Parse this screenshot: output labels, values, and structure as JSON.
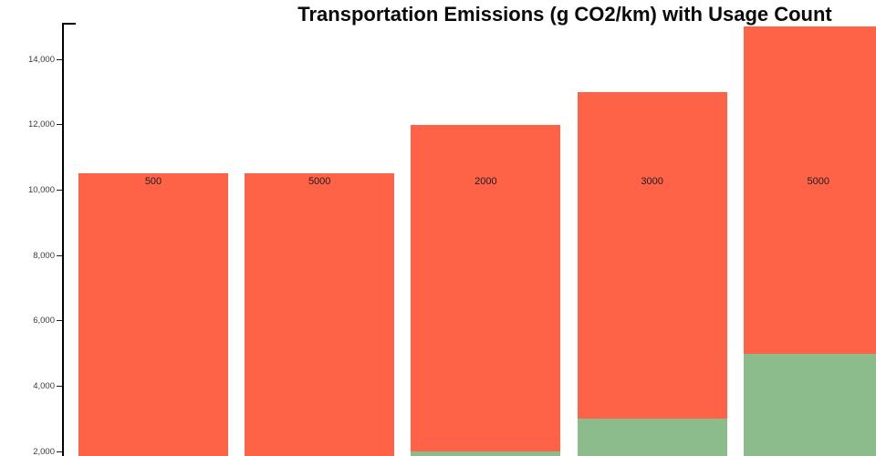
{
  "title": "Transportation Emissions (g CO2/km) with Usage Count",
  "colors": {
    "emissions_bar": "#FF6347",
    "usage_bar": "#8CBC8C",
    "axis": "#000000",
    "tick_label": "#3a3a3a",
    "bar_label": "#1c1c1c",
    "background": "#ffffff"
  },
  "chart_data": {
    "type": "bar",
    "stacked": true,
    "title": "Transportation Emissions (g CO2/km) with Usage Count",
    "xlabel": "",
    "ylabel": "",
    "grid": false,
    "legend": false,
    "x_tick_labels_visible": false,
    "y_axis_visible_top_value": 15100,
    "y_axis_bottom_cut_value": 1870,
    "yticks": [
      {
        "value": 2000,
        "label": "2,000"
      },
      {
        "value": 4000,
        "label": "4,000"
      },
      {
        "value": 6000,
        "label": "6,000"
      },
      {
        "value": 8000,
        "label": "8,000"
      },
      {
        "value": 10000,
        "label": "10,000"
      },
      {
        "value": 12000,
        "label": "12,000"
      },
      {
        "value": 14000,
        "label": "14,000"
      }
    ],
    "series": [
      {
        "name": "emissions (orange)",
        "color": "#FF6347"
      },
      {
        "name": "usage count (green)",
        "color": "#8CBC8C"
      }
    ],
    "bars": [
      {
        "label_text": "500",
        "bar_top_value": 10500,
        "usage_segment_top_value": null
      },
      {
        "label_text": "5000",
        "bar_top_value": 10500,
        "usage_segment_top_value": null
      },
      {
        "label_text": "2000",
        "bar_top_value": 12000,
        "usage_segment_top_value": 2000
      },
      {
        "label_text": "3000",
        "bar_top_value": 13000,
        "usage_segment_top_value": 3000
      },
      {
        "label_text": "5000",
        "bar_top_value": 15000,
        "usage_segment_top_value": 5000
      }
    ]
  }
}
